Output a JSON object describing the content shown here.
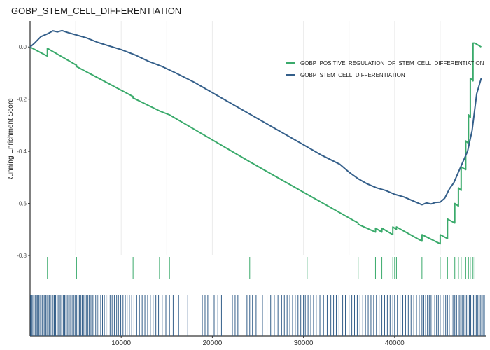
{
  "chart_data": {
    "type": "line",
    "title": "GOBP_STEM_CELL_DIFFERENTIATION",
    "xlabel": "",
    "ylabel": "Running Enrichment Score",
    "xlim": [
      0,
      50000
    ],
    "ylim": [
      -0.8,
      0.1
    ],
    "x_ticks": [
      10000,
      20000,
      30000,
      40000
    ],
    "y_ticks": [
      0.0,
      -0.2,
      -0.4,
      -0.6,
      -0.8
    ],
    "y_tick_labels": [
      "0.0",
      "-0.2",
      "-0.4",
      "-0.6",
      "-0.8"
    ],
    "x_tick_labels": [
      "10000",
      "20000",
      "30000",
      "40000"
    ],
    "legend_position": "top-right",
    "grid": true,
    "series": [
      {
        "name": "GOBP_POSITIVE_REGULATION_OF_STEM_CELL_DIFFERENTIATION",
        "color": "#3aaa6b",
        "x": [
          0,
          1900,
          1900,
          5100,
          5100,
          11300,
          11300,
          14200,
          15300,
          24100,
          30400,
          36000,
          36000,
          37900,
          37900,
          38600,
          38600,
          39800,
          39800,
          40200,
          40200,
          43000,
          43000,
          45000,
          45000,
          45800,
          45800,
          46600,
          46600,
          47000,
          47000,
          47300,
          47300,
          47800,
          47800,
          48100,
          48100,
          48300,
          48300,
          48600,
          48600,
          48800,
          49500
        ],
        "y": [
          0.0,
          -0.035,
          -0.005,
          -0.07,
          -0.075,
          -0.19,
          -0.195,
          -0.245,
          -0.26,
          -0.44,
          -0.565,
          -0.675,
          -0.68,
          -0.71,
          -0.695,
          -0.71,
          -0.695,
          -0.72,
          -0.69,
          -0.7,
          -0.69,
          -0.745,
          -0.72,
          -0.755,
          -0.72,
          -0.735,
          -0.66,
          -0.675,
          -0.6,
          -0.61,
          -0.54,
          -0.55,
          -0.46,
          -0.47,
          -0.36,
          -0.37,
          -0.26,
          -0.27,
          -0.12,
          -0.13,
          0.015,
          0.015,
          0.0
        ]
      },
      {
        "name": "GOBP_STEM_CELL_DIFFERENTIATION",
        "color": "#345f8a",
        "x": [
          0,
          500,
          1200,
          2000,
          2500,
          3000,
          3500,
          4200,
          5200,
          6200,
          7400,
          8600,
          10000,
          11500,
          13000,
          14500,
          16000,
          18000,
          20000,
          22000,
          24000,
          26000,
          28000,
          30000,
          32000,
          34000,
          35000,
          36000,
          37000,
          38000,
          39000,
          40000,
          41000,
          42000,
          43000,
          43500,
          44000,
          44500,
          45000,
          45500,
          46000,
          46500,
          47000,
          47500,
          48000,
          48500,
          49000,
          49500
        ],
        "y": [
          0.0,
          0.015,
          0.04,
          0.052,
          0.062,
          0.058,
          0.063,
          0.055,
          0.045,
          0.035,
          0.018,
          0.005,
          -0.01,
          -0.03,
          -0.055,
          -0.075,
          -0.1,
          -0.135,
          -0.175,
          -0.215,
          -0.255,
          -0.295,
          -0.335,
          -0.375,
          -0.415,
          -0.45,
          -0.48,
          -0.505,
          -0.525,
          -0.54,
          -0.55,
          -0.565,
          -0.575,
          -0.59,
          -0.605,
          -0.598,
          -0.602,
          -0.596,
          -0.595,
          -0.58,
          -0.545,
          -0.52,
          -0.48,
          -0.44,
          -0.4,
          -0.32,
          -0.18,
          -0.12
        ]
      }
    ],
    "hits_top": [
      1900,
      5100,
      11300,
      14200,
      15300,
      24100,
      30400,
      36000,
      37900,
      38600,
      39800,
      40000,
      40200,
      43000,
      45000,
      45800,
      46600,
      47000,
      47300,
      47800,
      48100,
      48300,
      48600,
      48800
    ],
    "hits_bottom": [
      50,
      180,
      300,
      430,
      560,
      700,
      820,
      950,
      1080,
      1200,
      1330,
      1450,
      1600,
      1720,
      1850,
      1980,
      2100,
      2230,
      2400,
      2520,
      2650,
      2800,
      2950,
      3080,
      3230,
      3370,
      3500,
      3640,
      3800,
      3930,
      4080,
      4230,
      4380,
      4520,
      4680,
      4820,
      4970,
      5120,
      5280,
      5420,
      5580,
      5720,
      5900,
      6050,
      6200,
      6350,
      6500,
      6680,
      6850,
      7000,
      7200,
      7380,
      7550,
      7750,
      7950,
      8150,
      8350,
      8560,
      8780,
      9000,
      9250,
      9500,
      9700,
      9950,
      10200,
      10450,
      10650,
      10900,
      11150,
      11400,
      11700,
      12000,
      12300,
      12600,
      12900,
      13200,
      13500,
      13800,
      14100,
      14500,
      14900,
      15300,
      15700,
      16300,
      17300,
      18900,
      19200,
      19500,
      20200,
      20600,
      21000,
      22200,
      22500,
      22800,
      23800,
      24100,
      24400,
      24800,
      25500,
      26000,
      26400,
      26800,
      27200,
      27600,
      27900,
      28200,
      28500,
      28800,
      29100,
      29400,
      29700,
      30000,
      30200,
      30500,
      30800,
      31100,
      31400,
      31800,
      32200,
      32600,
      33000,
      33300,
      33600,
      33900,
      34300,
      34600,
      35000,
      35300,
      35600,
      35900,
      36200,
      36500,
      36800,
      37100,
      37400,
      37700,
      38000,
      38300,
      38600,
      38900,
      39200,
      39500,
      39800,
      40000,
      40300,
      40600,
      40900,
      41200,
      41500,
      41800,
      42100,
      42400,
      42700,
      43000,
      43200,
      43400,
      43600,
      43800,
      44000,
      44200,
      44400,
      44600,
      44800,
      45000,
      45200,
      45400,
      45600,
      45800,
      46000,
      46200,
      46400,
      46600,
      46800,
      47000,
      47150,
      47300,
      47450,
      47600,
      47750,
      47900,
      48050,
      48200,
      48350,
      48500,
      48650,
      48800,
      48950,
      49100,
      49250,
      49400,
      49550,
      49700,
      49850
    ]
  }
}
